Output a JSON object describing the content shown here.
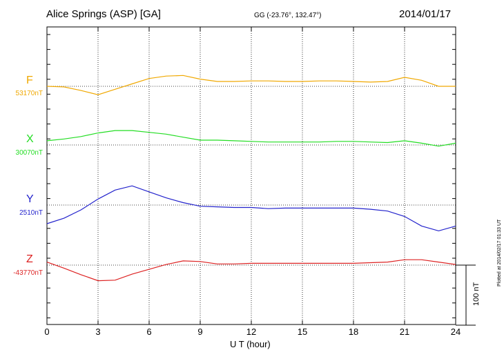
{
  "header": {
    "title": "Alice Springs (ASP)  [GA]",
    "coords": "GG (-23.76°, 132.47°)",
    "date": "2014/01/17"
  },
  "footer": {
    "plotted": "Plotted at 2014/02/17 01:33 UT",
    "scale_label": "100 nT"
  },
  "chart_data": {
    "type": "line",
    "xlabel": "U T (hour)",
    "xlim": [
      0,
      24
    ],
    "xticks": [
      "0",
      "3",
      "6",
      "9",
      "12",
      "15",
      "18",
      "21",
      "24"
    ],
    "grid": true,
    "scale_bar_nT": 100,
    "series": [
      {
        "name": "F",
        "baseline": "53170nT",
        "baseline_nT": 53170,
        "color": "#f0a800",
        "x": [
          0,
          1,
          2,
          3,
          4,
          5,
          6,
          7,
          8,
          9,
          10,
          11,
          12,
          13,
          14,
          15,
          16,
          17,
          18,
          19,
          20,
          21,
          22,
          23,
          24
        ],
        "y": [
          53170,
          53169,
          53163,
          53156,
          53165,
          53174,
          53183,
          53187,
          53188,
          53182,
          53178,
          53178,
          53179,
          53179,
          53178,
          53178,
          53179,
          53179,
          53178,
          53177,
          53178,
          53185,
          53180,
          53170,
          53170
        ]
      },
      {
        "name": "X",
        "baseline": "30070nT",
        "baseline_nT": 30070,
        "color": "#22dd22",
        "x": [
          0,
          1,
          2,
          3,
          4,
          5,
          6,
          7,
          8,
          9,
          10,
          11,
          12,
          13,
          14,
          15,
          16,
          17,
          18,
          19,
          20,
          21,
          22,
          23,
          24
        ],
        "y": [
          30077,
          30080,
          30084,
          30090,
          30094,
          30094,
          30091,
          30088,
          30083,
          30078,
          30078,
          30077,
          30076,
          30075,
          30075,
          30075,
          30075,
          30076,
          30076,
          30075,
          30074,
          30077,
          30073,
          30068,
          30073
        ]
      },
      {
        "name": "Y",
        "baseline": "2510nT",
        "baseline_nT": 2510,
        "color": "#2222cc",
        "x": [
          0,
          1,
          2,
          3,
          4,
          5,
          6,
          7,
          8,
          9,
          10,
          11,
          12,
          13,
          14,
          15,
          16,
          17,
          18,
          19,
          20,
          21,
          22,
          23,
          24
        ],
        "y": [
          2479,
          2488,
          2502,
          2520,
          2535,
          2542,
          2532,
          2522,
          2514,
          2508,
          2507,
          2506,
          2506,
          2504,
          2505,
          2505,
          2505,
          2505,
          2505,
          2503,
          2500,
          2491,
          2475,
          2467,
          2475
        ]
      },
      {
        "name": "Z",
        "baseline": "-43770nT",
        "baseline_nT": -43770,
        "color": "#dd2222",
        "x": [
          0,
          1,
          2,
          3,
          4,
          5,
          6,
          7,
          8,
          9,
          10,
          11,
          12,
          13,
          14,
          15,
          16,
          17,
          18,
          19,
          20,
          21,
          22,
          23,
          24
        ],
        "y": [
          -43765,
          -43775,
          -43786,
          -43796,
          -43795,
          -43785,
          -43777,
          -43769,
          -43763,
          -43764,
          -43768,
          -43768,
          -43767,
          -43767,
          -43767,
          -43767,
          -43767,
          -43767,
          -43767,
          -43766,
          -43765,
          -43761,
          -43761,
          -43765,
          -43769
        ]
      }
    ]
  }
}
